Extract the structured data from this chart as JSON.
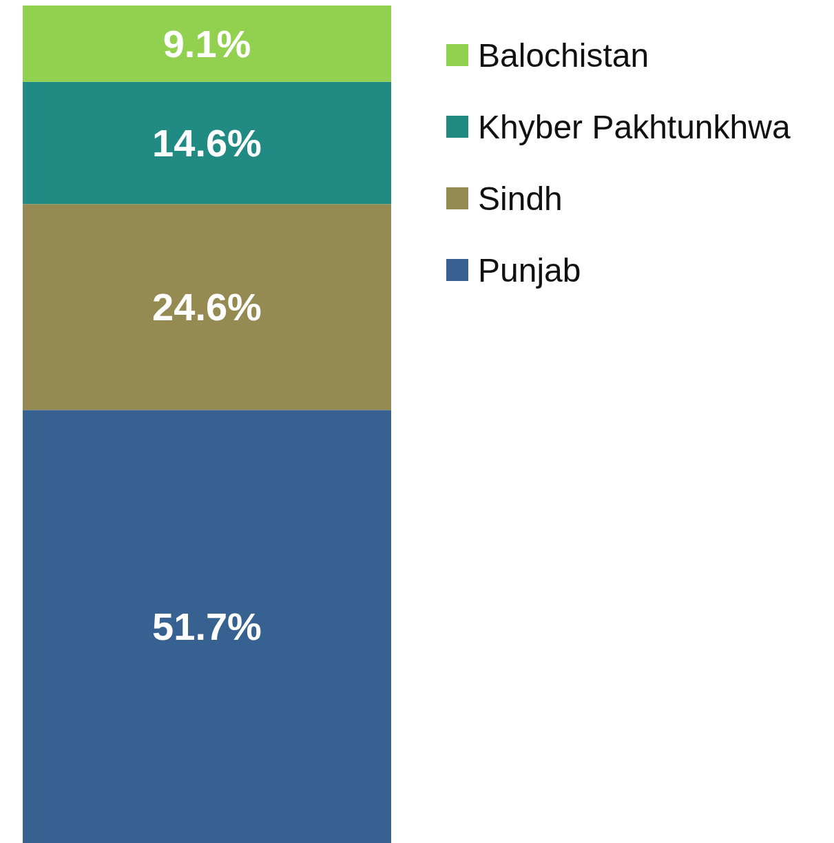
{
  "chart_data": {
    "type": "bar",
    "stacked": true,
    "categories": [
      null
    ],
    "series": [
      {
        "name": "Punjab",
        "color": "#376191",
        "values": [
          51.7
        ],
        "value_labels": [
          "51.7%"
        ]
      },
      {
        "name": "Sindh",
        "color": "#958a52",
        "values": [
          24.6
        ],
        "value_labels": [
          "24.6%"
        ]
      },
      {
        "name": "Khyber Pakhtunkhwa",
        "color": "#218a83",
        "values": [
          14.6
        ],
        "value_labels": [
          "14.6%"
        ]
      },
      {
        "name": "Balochistan",
        "color": "#92d050",
        "values": [
          9.1
        ],
        "value_labels": [
          "9.1%"
        ]
      }
    ],
    "legend": "top right",
    "grid": false
  }
}
